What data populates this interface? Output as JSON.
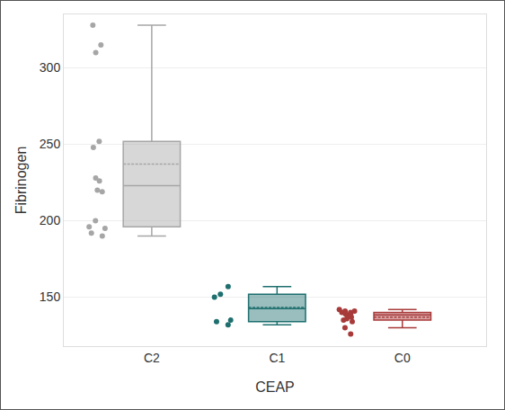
{
  "chart_data": {
    "type": "box",
    "x_label": "CEAP",
    "y_label": "Fibrinogen",
    "categories": [
      "C2",
      "C1",
      "C0"
    ],
    "values": [
      [
        328,
        315,
        310,
        252,
        248,
        228,
        226,
        220,
        219,
        200,
        196,
        195,
        192,
        190
      ],
      [
        157,
        152,
        150,
        135,
        134,
        132
      ],
      [
        142,
        141,
        141,
        140,
        140,
        139,
        139,
        138,
        137,
        136,
        135,
        134,
        130,
        126
      ]
    ],
    "colors": [
      "#a6a6a6",
      "#1f6f6f",
      "#a83a3a"
    ],
    "ylim": [
      118,
      335
    ],
    "yticks": [
      150,
      200,
      250,
      300
    ],
    "grid": true
  }
}
